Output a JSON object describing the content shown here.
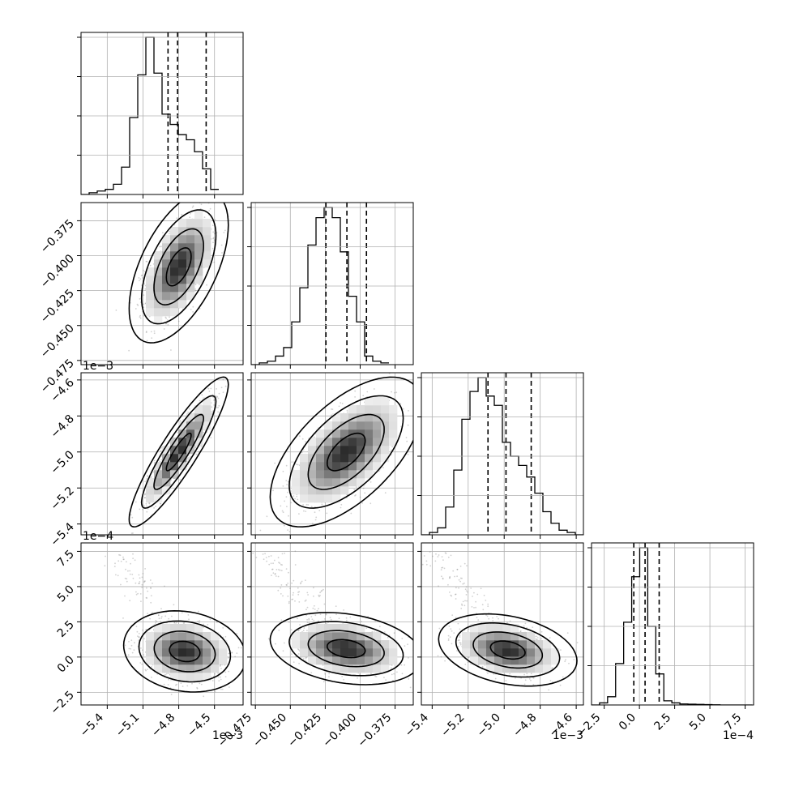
{
  "chart_data": {
    "type": "corner",
    "title": "",
    "parameters": [
      {
        "id": "p0",
        "range": [
          -5.62,
          -4.26
        ],
        "ticks": [
          -5.4,
          -5.1,
          -4.8,
          -4.5
        ],
        "tick_labels": [
          "−5.4",
          "−5.1",
          "−4.8",
          "−4.5"
        ],
        "offset_label": "1e−3",
        "quantiles": [
          -4.89,
          -4.81,
          -4.57
        ],
        "hist_edges_start": -5.62,
        "hist_bin_width": 0.068,
        "hist_counts": [
          0,
          1,
          2,
          3,
          6,
          16,
          45,
          70,
          92,
          71,
          47,
          41,
          35,
          32,
          25,
          15,
          3
        ]
      },
      {
        "id": "p1",
        "range": [
          -0.478,
          -0.362
        ],
        "ticks": [
          -0.475,
          -0.45,
          -0.425,
          -0.4,
          -0.375
        ],
        "tick_labels": [
          "−0.475",
          "−0.450",
          "−0.425",
          "−0.400",
          "−0.375"
        ],
        "offset_label": "",
        "quantiles": [
          -0.4245,
          -0.4095,
          -0.3955
        ],
        "hist_edges_start": -0.478,
        "hist_bin_width": 0.0058,
        "hist_counts": [
          0,
          1,
          2,
          5,
          10,
          25,
          45,
          70,
          86,
          92,
          86,
          66,
          40,
          25,
          5,
          2,
          1
        ]
      },
      {
        "id": "p2",
        "range": [
          -5.46,
          -4.56
        ],
        "ticks": [
          -5.4,
          -5.2,
          -5.0,
          -4.8,
          -4.6
        ],
        "tick_labels": [
          "−5.4",
          "−5.2",
          "−5.0",
          "−4.8",
          "−4.6"
        ],
        "offset_label": "1e−3",
        "quantiles": [
          -5.09,
          -4.99,
          -4.85
        ],
        "hist_edges_start": -5.46,
        "hist_bin_width": 0.045,
        "hist_counts": [
          0,
          1,
          3,
          12,
          28,
          50,
          62,
          68,
          60,
          56,
          40,
          34,
          30,
          25,
          18,
          10,
          5,
          2,
          1,
          0
        ]
      },
      {
        "id": "p3",
        "range": [
          -3.4,
          8.1
        ],
        "ticks": [
          -2.5,
          0.0,
          2.5,
          5.0,
          7.5
        ],
        "tick_labels": [
          "−2.5",
          "0.0",
          "2.5",
          "5.0",
          "7.5"
        ],
        "offset_label": "1e−4",
        "quantiles": [
          -0.4,
          0.4,
          1.4
        ],
        "hist_edges_start": -3.4,
        "hist_bin_width": 0.57,
        "hist_counts": [
          0,
          1,
          4,
          20,
          40,
          62,
          76,
          38,
          15,
          2,
          1,
          0.5,
          0.4,
          0.3,
          0.2,
          0.1,
          0,
          0,
          0,
          0
        ]
      }
    ],
    "pairs": [
      {
        "x": "p0",
        "y": "p1",
        "center": [
          -4.8,
          -0.408
        ],
        "sd": [
          0.13,
          0.017
        ],
        "rho": 0.55
      },
      {
        "x": "p0",
        "y": "p2",
        "center": [
          -4.8,
          -5.0
        ],
        "sd": [
          0.13,
          0.13
        ],
        "rho": 0.9
      },
      {
        "x": "p0",
        "y": "p3",
        "center": [
          -4.75,
          0.4
        ],
        "sd": [
          0.16,
          0.9
        ],
        "rho": -0.15
      },
      {
        "x": "p1",
        "y": "p2",
        "center": [
          -0.41,
          -5.0
        ],
        "sd": [
          0.017,
          0.13
        ],
        "rho": 0.6
      },
      {
        "x": "p1",
        "y": "p3",
        "center": [
          -0.41,
          0.6
        ],
        "sd": [
          0.017,
          0.8
        ],
        "rho": -0.25
      },
      {
        "x": "p2",
        "y": "p3",
        "center": [
          -4.98,
          0.5
        ],
        "sd": [
          0.12,
          0.8
        ],
        "rho": -0.3
      }
    ],
    "contour_levels_sigma": [
      0.5,
      1.0,
      1.5,
      2.0
    ],
    "grid": true,
    "legend": "none"
  }
}
